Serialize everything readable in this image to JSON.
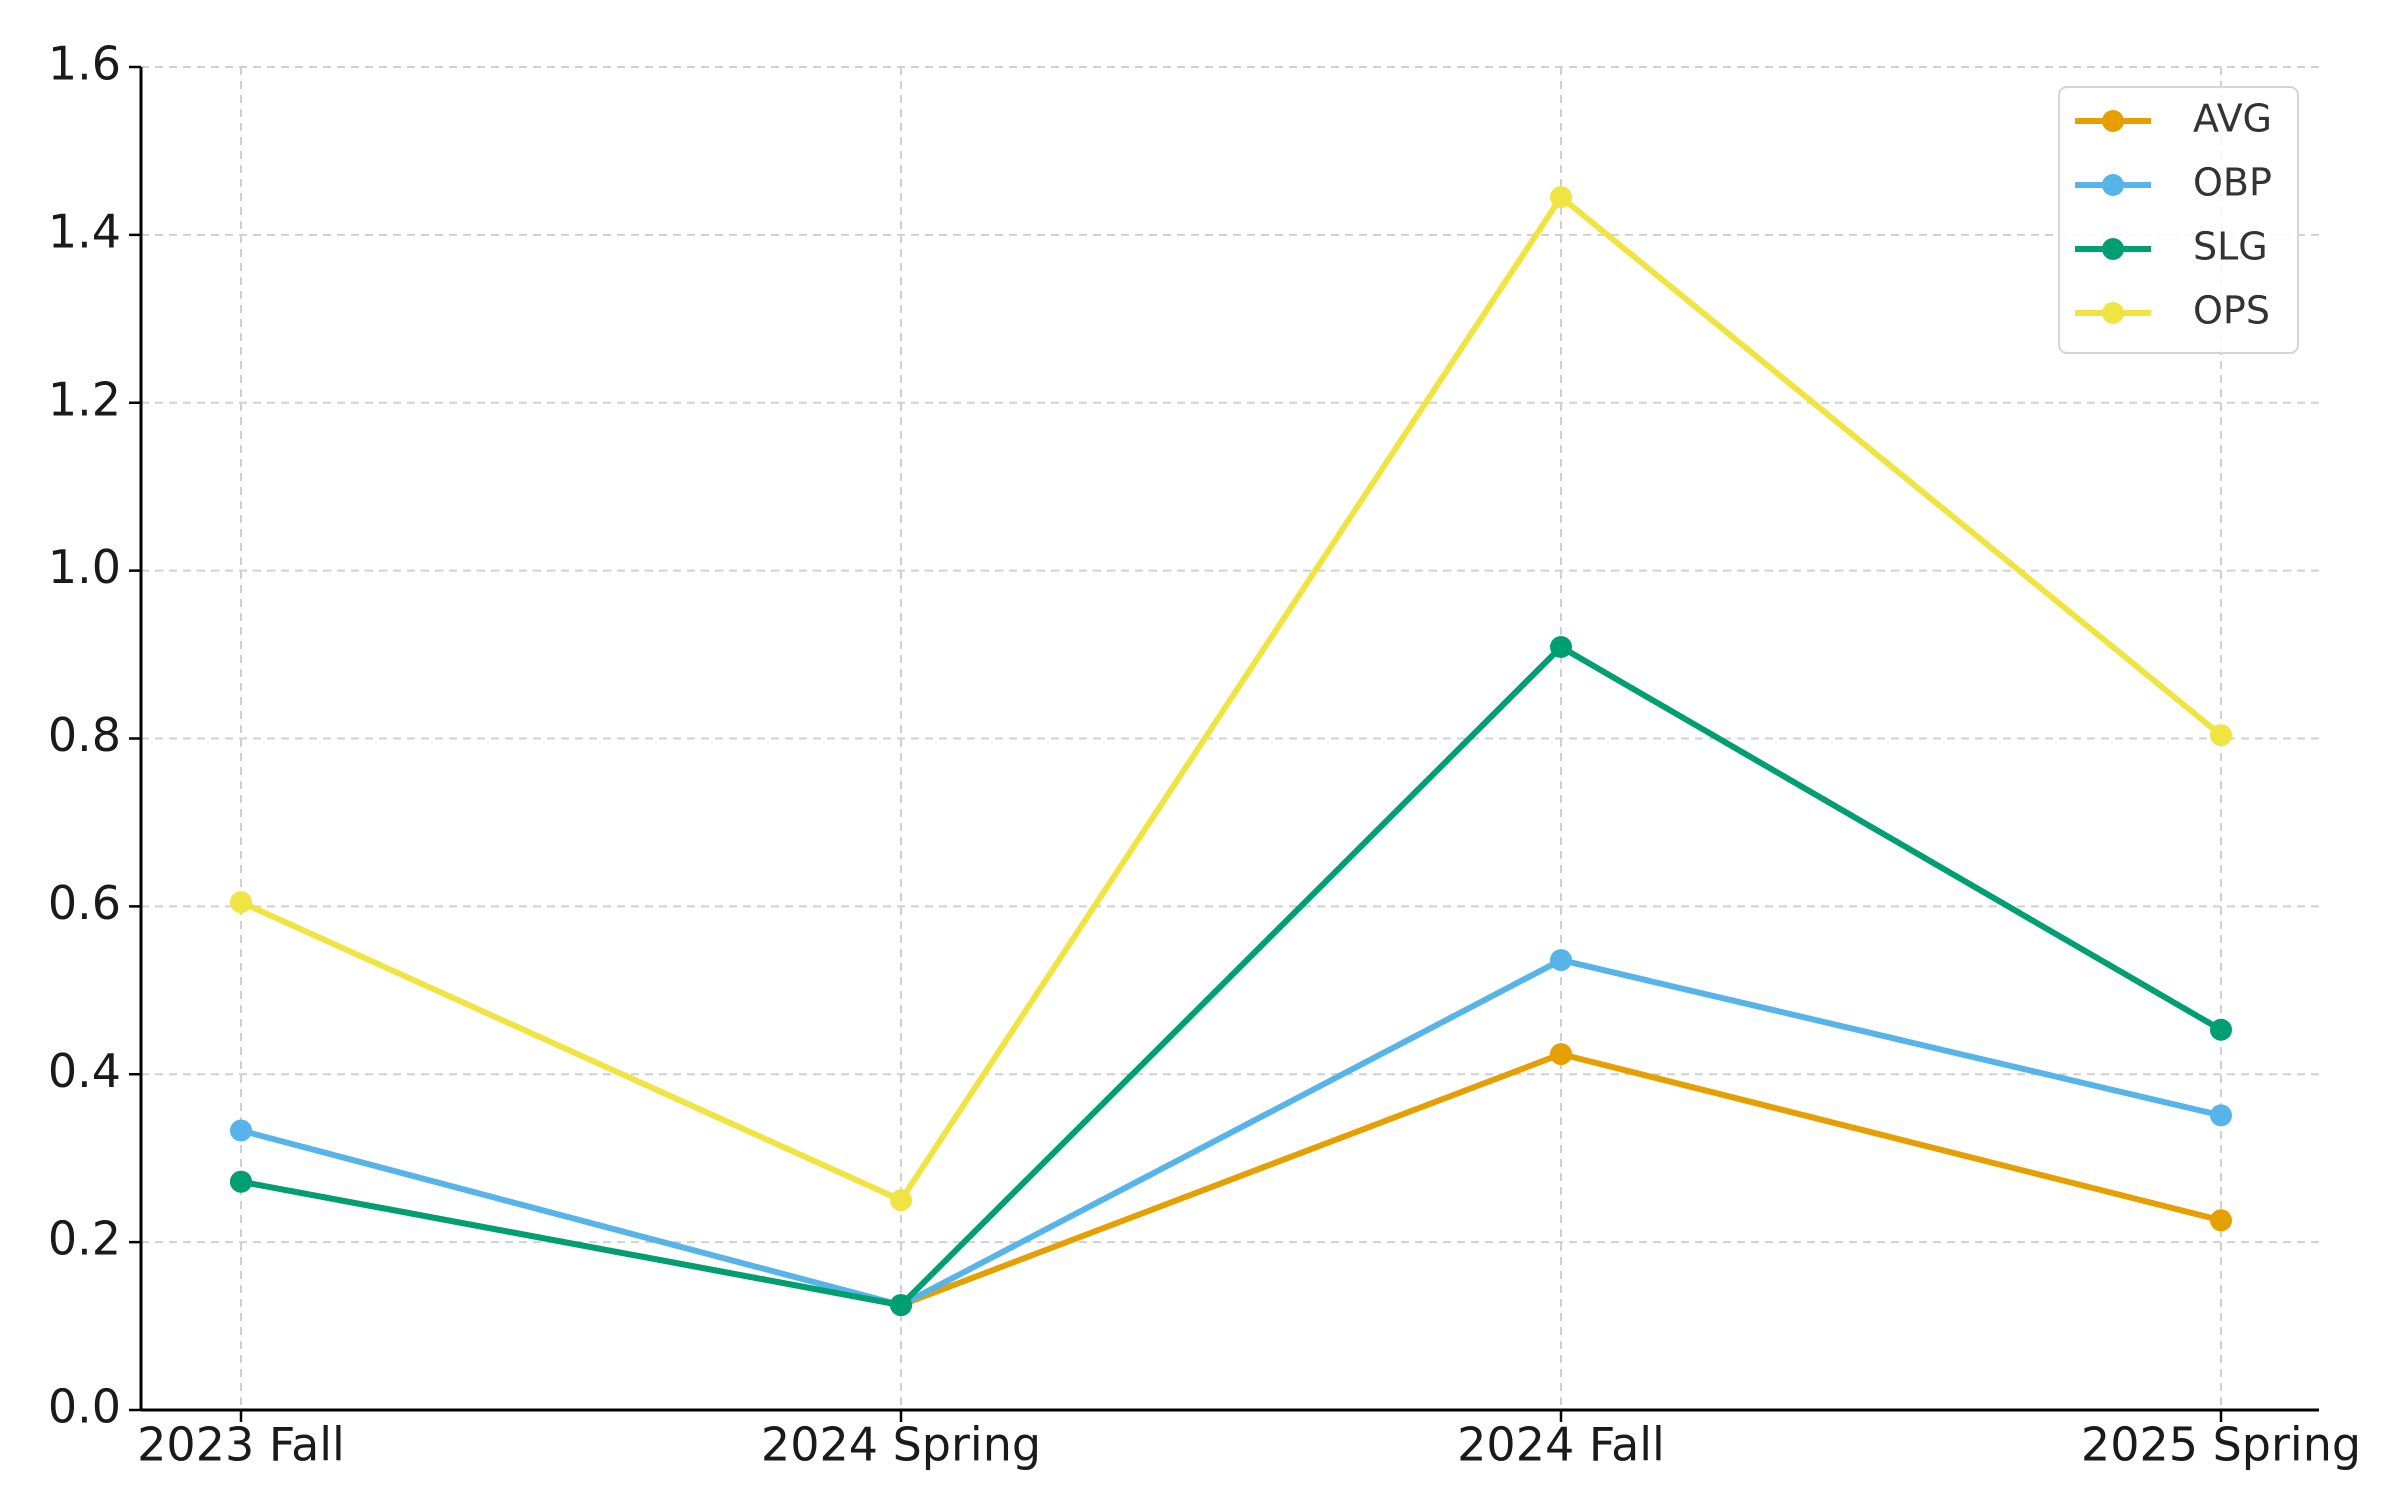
{
  "chart_data": {
    "type": "line",
    "categories": [
      "2023 Fall",
      "2024 Spring",
      "2024 Fall",
      "2025 Spring"
    ],
    "series": [
      {
        "name": "AVG",
        "color": "#e69f00",
        "values": [
          0.272,
          0.125,
          0.424,
          0.226
        ]
      },
      {
        "name": "OBP",
        "color": "#56b4e9",
        "values": [
          0.333,
          0.125,
          0.536,
          0.351
        ]
      },
      {
        "name": "SLG",
        "color": "#009e73",
        "values": [
          0.272,
          0.125,
          0.909,
          0.453
        ]
      },
      {
        "name": "OPS",
        "color": "#f0e442",
        "values": [
          0.605,
          0.25,
          1.445,
          0.804
        ]
      }
    ],
    "ylim": [
      0,
      1.6
    ],
    "yticks": [
      {
        "value": 0,
        "label": "0.0"
      },
      {
        "value": 0.2,
        "label": "0.2"
      },
      {
        "value": 0.4,
        "label": "0.4"
      },
      {
        "value": 0.6,
        "label": "0.6"
      },
      {
        "value": 0.8,
        "label": "0.8"
      },
      {
        "value": 1.0,
        "label": "1.0"
      },
      {
        "value": 1.2,
        "label": "1.2"
      },
      {
        "value": 1.4,
        "label": "1.4"
      },
      {
        "value": 1.6,
        "label": "1.6"
      }
    ],
    "grid": true,
    "legend": "upper right"
  }
}
